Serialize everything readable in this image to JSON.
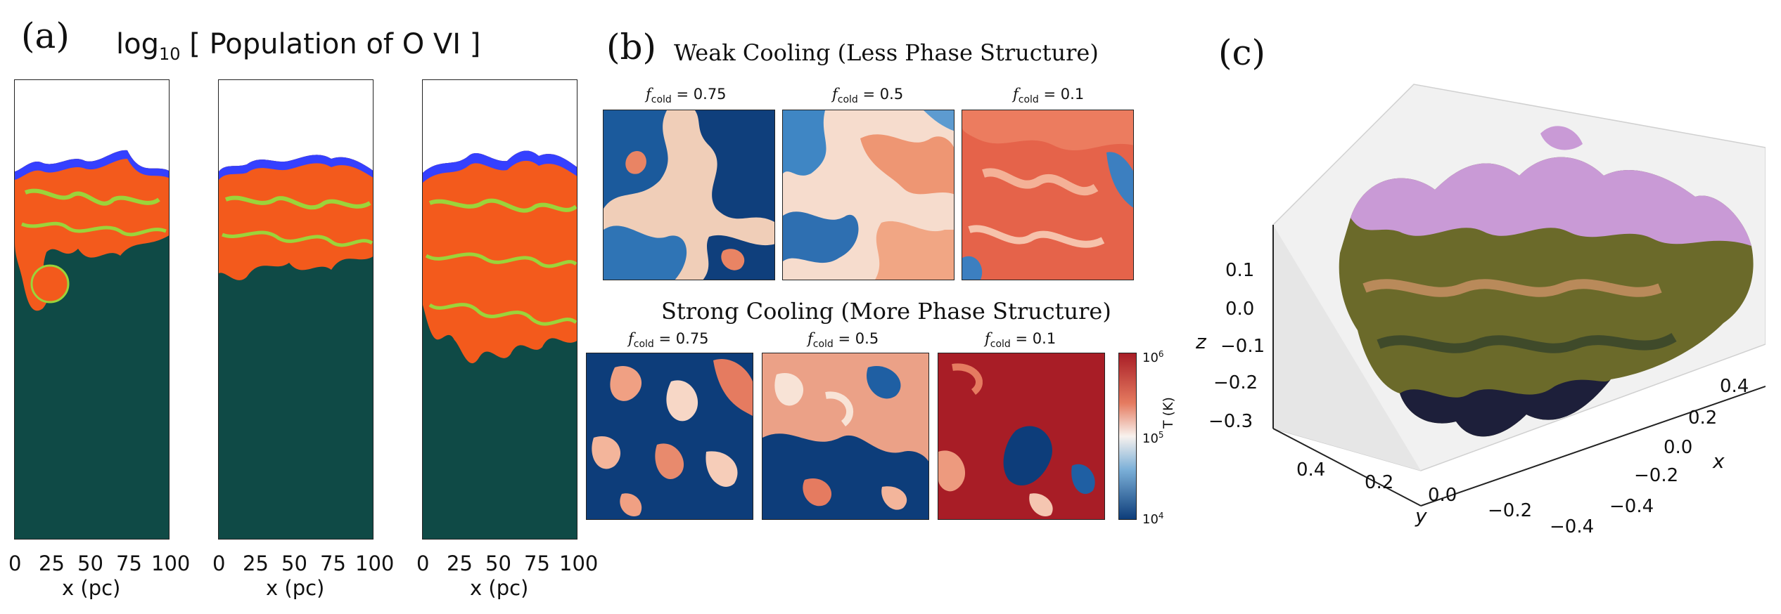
{
  "panel_a": {
    "letter": "(a)",
    "title_prefix": "log",
    "title_sub": "10",
    "title_rest": "[ Population of O VI ]",
    "xticks": [
      "0",
      "25",
      "50",
      "75",
      "100"
    ],
    "xlabel": "x (pc)"
  },
  "panel_b": {
    "letter": "(b)",
    "weak_title": "Weak Cooling (Less Phase Structure)",
    "strong_title": "Strong Cooling (More Phase Structure)",
    "f_symbol": "f",
    "f_sub": "cold",
    "weak_values": [
      "= 0.75",
      "= 0.5",
      "= 0.1"
    ],
    "strong_values": [
      "= 0.75",
      "= 0.5",
      "= 0.1"
    ],
    "colorbar": {
      "label": "T (K)",
      "top_base": "10",
      "top_exp": "6",
      "mid_base": "10",
      "mid_exp": "5",
      "bot_base": "10",
      "bot_exp": "4"
    }
  },
  "panel_c": {
    "letter": "(c)",
    "z_ticks": [
      "0.1",
      "0.0",
      "−0.1",
      "−0.2",
      "−0.3"
    ],
    "z_label": "z",
    "y_ticks": [
      "0.4",
      "0.2",
      "0.0",
      "−0.2",
      "−0.4"
    ],
    "y_label": "y",
    "x_ticks": [
      "0.4",
      "0.2",
      "0.0",
      "−0.2",
      "−0.4"
    ],
    "x_label": "x"
  }
}
